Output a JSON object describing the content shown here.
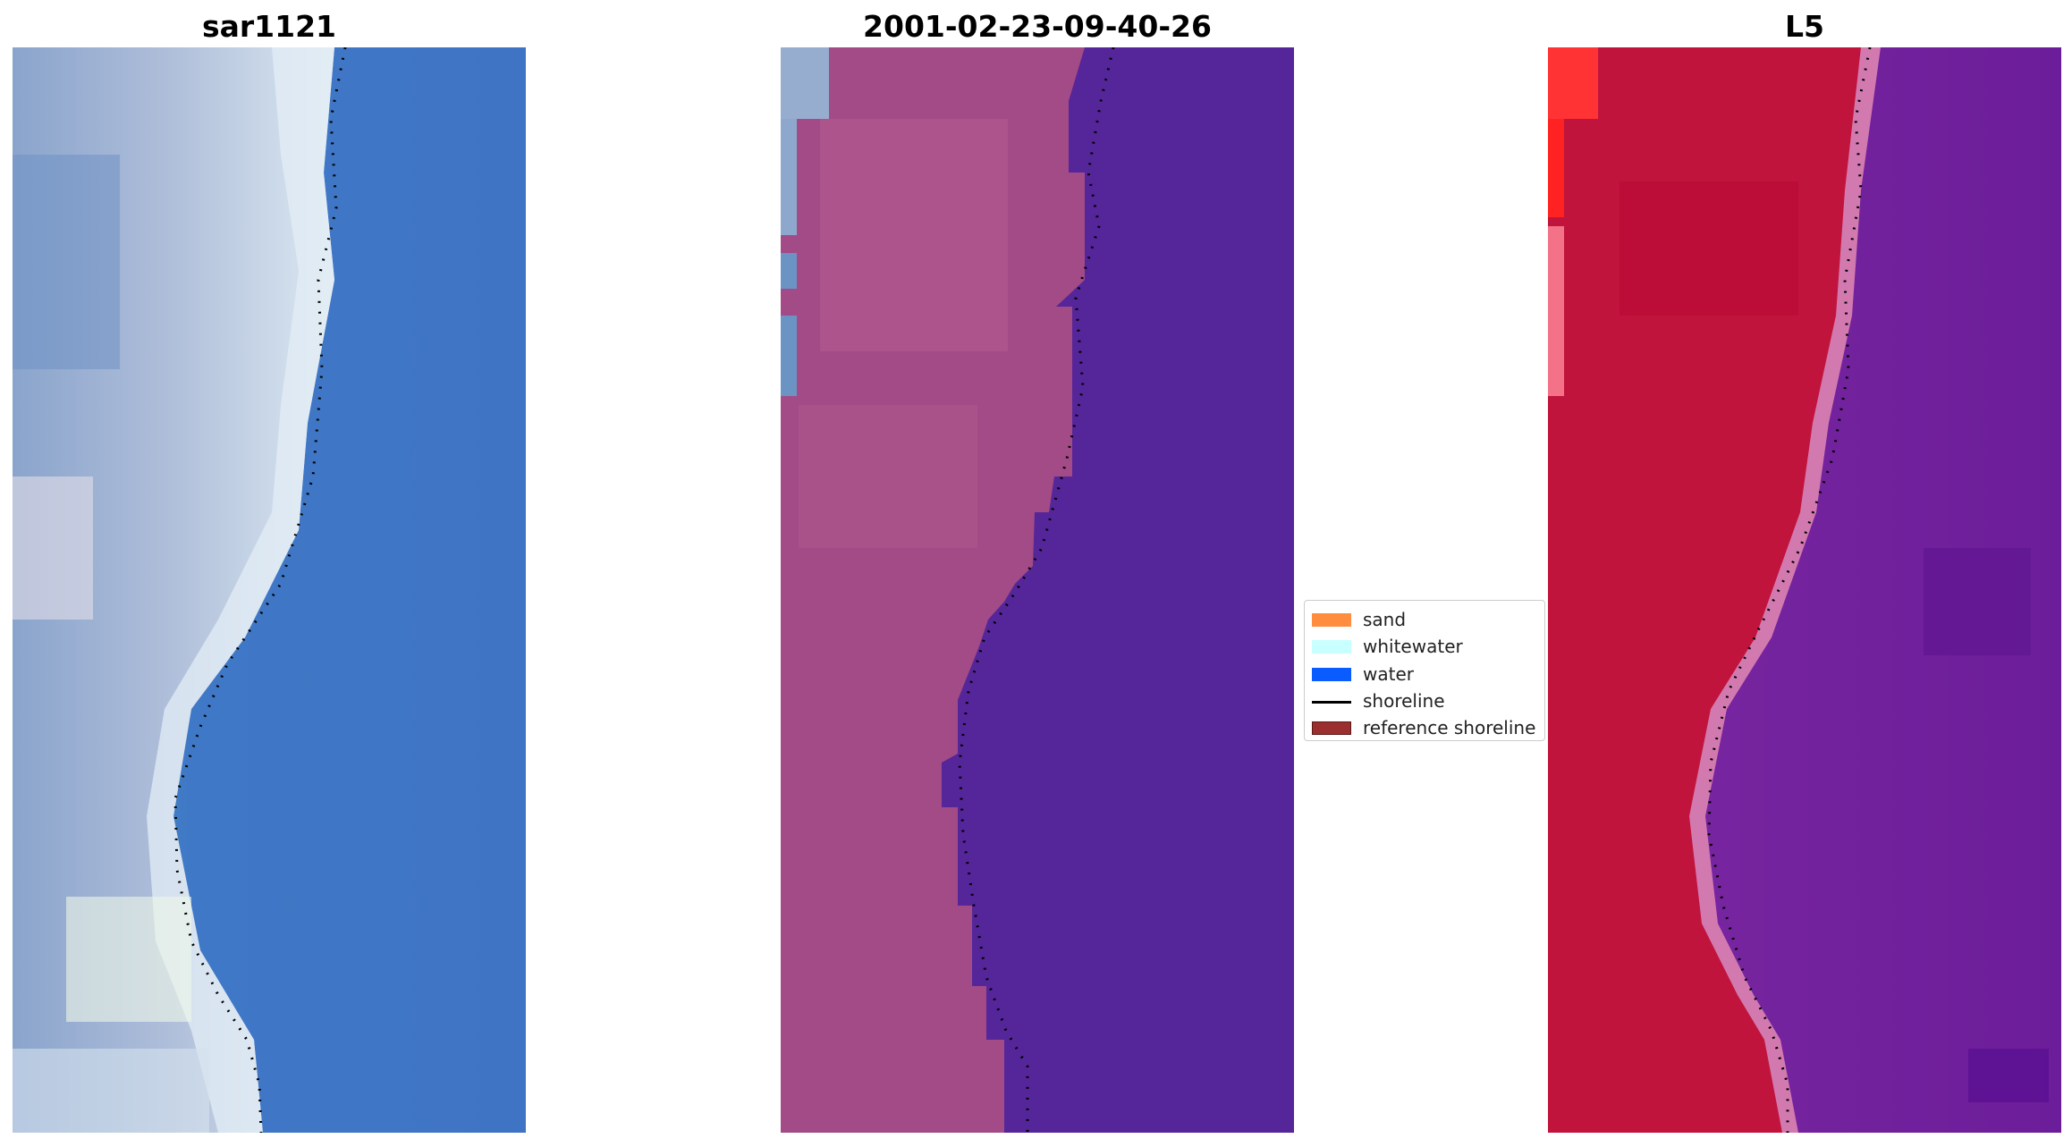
{
  "panels": [
    {
      "id": "sar",
      "title": "sar1121"
    },
    {
      "id": "date",
      "title": "2001-02-23-09-40-26"
    },
    {
      "id": "l5",
      "title": "L5"
    }
  ],
  "legend": {
    "items": [
      {
        "label": "sand",
        "type": "patch",
        "color": "#ff8c3f"
      },
      {
        "label": "whitewater",
        "type": "patch",
        "color": "#c8ffff"
      },
      {
        "label": "water",
        "type": "patch",
        "color": "#0a5cff"
      },
      {
        "label": "shoreline",
        "type": "line",
        "color": "#000000"
      },
      {
        "label": "reference shoreline",
        "type": "patch",
        "color": "#9b2e2e"
      }
    ]
  },
  "colors": {
    "sar_water": "#3f74c4",
    "sar_beach": "#a6b7d4",
    "composite_land": "#a04a86",
    "composite_water": "#55259a",
    "l5_land": "#c0143c",
    "l5_water": "#7b28a2"
  }
}
